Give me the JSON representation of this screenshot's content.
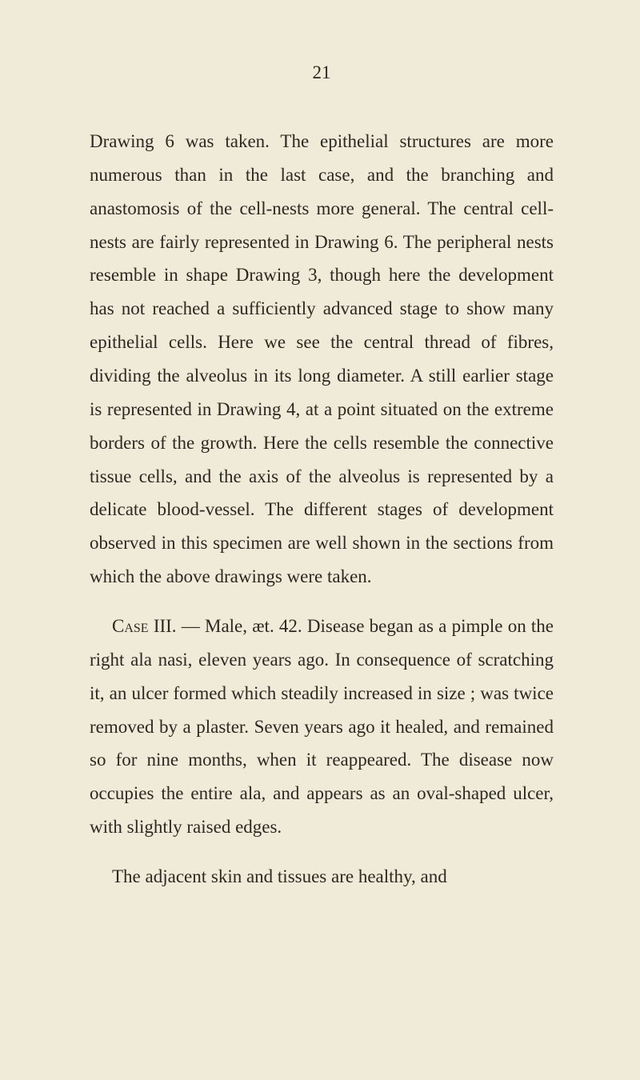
{
  "page": {
    "number": "21",
    "background_color": "#f0ead8",
    "text_color": "#2c2822",
    "font_size": 23,
    "line_height": 1.82
  },
  "paragraphs": [
    {
      "text": "Drawing 6 was taken. The epithelial structures are more numerous than in the last case, and the branching and anastomosis of the cell-nests more general. The central cell-nests are fairly repre­sented in Drawing 6. The peripheral nests resem­ble in shape Drawing 3, though here the develop­ment has not reached a sufficiently advanced stage to show many epithelial cells. Here we see the central thread of fibres, dividing the alveolus in its long diameter. A still earlier stage is represented in Drawing 4, at a point situated on the extreme borders of the growth. Here the cells resemble the connective tissue cells, and the axis of the alve­olus is represented by a delicate blood-vessel. The different stages of development observed in this specimen are well shown in the sections from which the above drawings were taken."
    },
    {
      "case_label": "Case",
      "case_number": "III.",
      "text_after": " — Male, æt. 42. Disease began as a pimple on the right ala nasi, eleven years ago. In consequence of scratching it, an ulcer formed which steadily increased in size ; was twice removed by a plaster. Seven years ago it healed, and remained so for nine months, when it reappeared. The dis­ease now occupies the entire ala, and appears as an oval-shaped ulcer, with slightly raised edges."
    },
    {
      "text": "The adjacent skin and tissues are healthy, and"
    }
  ]
}
